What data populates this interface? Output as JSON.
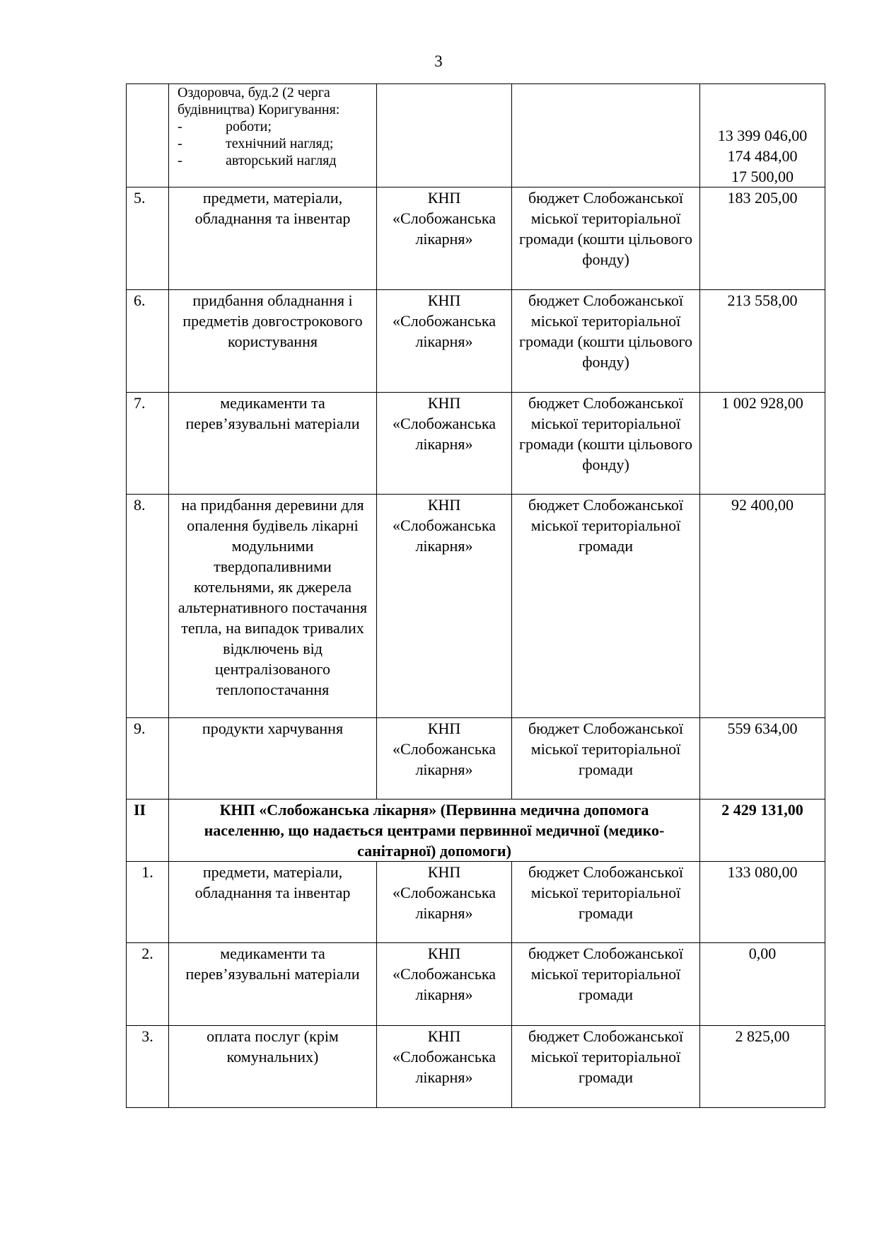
{
  "page_number": "3",
  "continuation_row": {
    "title_lines": [
      "Оздоровча, буд.2 (2 черга",
      "будівництва) Коригування:"
    ],
    "items": [
      "роботи;",
      "технічний нагляд;",
      "авторський нагляд"
    ],
    "amounts": [
      "13 399 046,00",
      "174 484,00",
      "17 500,00"
    ]
  },
  "rows_a": [
    {
      "num": "5.",
      "name": "предмети, матеріали, обладнання та інвентар",
      "executor": "КНП «Слобожанська лікарня»",
      "source": "бюджет Слобожанської міської територіальної громади (кошти цільового фонду)",
      "amount": "183 205,00"
    },
    {
      "num": "6.",
      "name": "придбання обладнання і предметів довгострокового користування",
      "executor": "КНП «Слобожанська лікарня»",
      "source": "бюджет Слобожанської міської територіальної громади (кошти цільового фонду)",
      "amount": "213 558,00"
    },
    {
      "num": "7.",
      "name": "медикаменти та перев’язувальні матеріали",
      "executor": "КНП «Слобожанська лікарня»",
      "source": "бюджет Слобожанської міської територіальної громади (кошти цільового фонду)",
      "amount": "1 002 928,00"
    },
    {
      "num": "8.",
      "name": "на придбання деревини для опалення будівель лікарні модульними твердопаливними котельнями, як джерела альтернативного постачання тепла, на випадок тривалих відключень від централізованого теплопостачання",
      "executor": "КНП «Слобожанська лікарня»",
      "source": "бюджет Слобожанської міської територіальної громади",
      "amount": "92 400,00"
    },
    {
      "num": "9.",
      "name": "продукти харчування",
      "executor": "КНП «Слобожанська лікарня»",
      "source": "бюджет Слобожанської міської територіальної громади",
      "amount": "559 634,00"
    }
  ],
  "section_ii": {
    "num": "II",
    "title": "КНП «Слобожанська лікарня» (Первинна медична допомога населенню, що надається центрами первинної медичної (медико-санітарної) допомоги)",
    "amount": "2 429 131,00"
  },
  "rows_b": [
    {
      "num": "1.",
      "name": "предмети, матеріали, обладнання та інвентар",
      "executor": "КНП «Слобожанська лікарня»",
      "source": "бюджет Слобожанської міської територіальної громади",
      "amount": "133 080,00"
    },
    {
      "num": "2.",
      "name": "медикаменти та перев’язувальні матеріали",
      "executor": "КНП «Слобожанська лікарня»",
      "source": "бюджет Слобожанської міської територіальної громади",
      "amount": "0,00"
    },
    {
      "num": "3.",
      "name": "оплата послуг (крім комунальних)",
      "executor": "КНП «Слобожанська лікарня»",
      "source": "бюджет Слобожанської міської територіальної громади",
      "amount": "2 825,00"
    }
  ]
}
